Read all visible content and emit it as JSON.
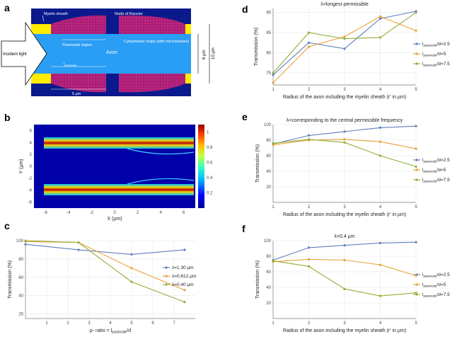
{
  "panel_labels": {
    "a": "a",
    "b": "b",
    "c": "c",
    "d": "d",
    "e": "e",
    "f": "f"
  },
  "colors": {
    "blue": "#5f7fbf",
    "orange": "#e8a23a",
    "green": "#8faf35",
    "axon": "#2a9df4",
    "myelin": "#b01f7a",
    "yellow": "#ffec00",
    "navy": "#0a1a8c"
  },
  "schematic": {
    "incident_light": "Incident light",
    "myelin_sheath": "Myelin sheath",
    "node_of_ranvier": "Node of Ranvier",
    "paranodal_region": "Paranodal region",
    "cytoplasmic_loops": "Cytoplasmic loops (with microtubules)",
    "axon": "Axon",
    "l_paranode": "l",
    "l_paranode_sub": "paranode",
    "scale": "5 µm",
    "dim_6": "6 µm",
    "dim_10": "10 µm"
  },
  "colorbar": {
    "ticks": [
      "1",
      "0.8",
      "0.6",
      "0.4",
      "0.2"
    ]
  },
  "chart_data": [
    {
      "id": "b",
      "type": "heatmap",
      "xlabel": "X (µm)",
      "ylabel": "Y (µm)",
      "xlim": [
        -7,
        7
      ],
      "ylim": [
        -7,
        7
      ],
      "xticks": [
        "-6",
        "-4",
        "-2",
        "0",
        "2",
        "4",
        "6"
      ],
      "yticks": [
        "6",
        "4",
        "2",
        "0",
        "-2",
        "-4",
        "-6"
      ],
      "clim": [
        0,
        1.1
      ]
    },
    {
      "id": "c",
      "type": "line",
      "title": "",
      "xlabel": "p- ratio = l",
      "xlabel_sub": "paranode",
      "xlabel_tail": "/d",
      "ylabel": "Transmission (%)",
      "xlim": [
        0,
        8
      ],
      "ylim": [
        15,
        100
      ],
      "xticks": [
        "1",
        "2",
        "3",
        "4",
        "5",
        "6",
        "7"
      ],
      "yticks": [
        "20",
        "40",
        "60",
        "80",
        "100"
      ],
      "x": [
        0,
        2.5,
        5,
        7.5
      ],
      "series": [
        {
          "name": "λ=1.30 µm",
          "values": [
            96,
            90,
            85,
            90
          ]
        },
        {
          "name": "λ=0.612 µm",
          "values": [
            99,
            98,
            70,
            46
          ]
        },
        {
          "name": "λ=0.40 µm",
          "values": [
            100,
            98,
            55,
            33
          ]
        }
      ]
    },
    {
      "id": "d",
      "type": "line",
      "title": "λ=longest permissible",
      "xlabel": "Radius of the axon including the myelin sheath (r' in µm)",
      "ylabel": "Transmission (%)",
      "xlim": [
        1,
        5
      ],
      "ylim": [
        72,
        91
      ],
      "xticks": [
        "1",
        "2",
        "3",
        "4",
        "5"
      ],
      "yticks": [
        "75",
        "80",
        "85",
        "90"
      ],
      "x": [
        1,
        2,
        3,
        4,
        5
      ],
      "series": [
        {
          "name": "l",
          "sub": "paranode",
          "tail": "/d=2.5",
          "values": [
            74.5,
            82.5,
            81,
            88.5,
            90.3
          ]
        },
        {
          "name": "l",
          "sub": "paranode",
          "tail": "/d=5",
          "values": [
            72.5,
            81.5,
            84,
            89,
            85.5
          ]
        },
        {
          "name": "l",
          "sub": "paranode",
          "tail": "/d=7.5",
          "values": [
            75,
            85,
            83.5,
            83.8,
            90
          ]
        }
      ]
    },
    {
      "id": "e",
      "type": "line",
      "title": "λ=corresponding to the central permissible frequency",
      "xlabel": "Radius of the axon including the myelin sheath (r' in µm)",
      "ylabel": "Transmission (%)",
      "xlim": [
        1,
        5
      ],
      "ylim": [
        0,
        100
      ],
      "xticks": [
        "1",
        "2",
        "3",
        "4",
        "5"
      ],
      "yticks": [
        "20",
        "40",
        "60",
        "80",
        "100"
      ],
      "x": [
        1,
        2,
        3,
        4,
        5
      ],
      "series": [
        {
          "name": "l",
          "sub": "paranode",
          "tail": "/d=2.5",
          "values": [
            75,
            86,
            91,
            96,
            98
          ]
        },
        {
          "name": "l",
          "sub": "paranode",
          "tail": "/d=5",
          "values": [
            74,
            80,
            81,
            78,
            69
          ]
        },
        {
          "name": "l",
          "sub": "paranode",
          "tail": "/d=7.5",
          "values": [
            76,
            81,
            77,
            60,
            46
          ]
        }
      ]
    },
    {
      "id": "f",
      "type": "line",
      "title": "λ=0.4 µm",
      "xlabel": "Radius of the axon including the myelin sheath (r' in µm)",
      "ylabel": "Transmission (%)",
      "xlim": [
        1,
        5
      ],
      "ylim": [
        0,
        100
      ],
      "xticks": [
        "1",
        "2",
        "3",
        "4",
        "5"
      ],
      "yticks": [
        "20",
        "40",
        "60",
        "80",
        "100"
      ],
      "x": [
        1,
        2,
        3,
        4,
        5
      ],
      "series": [
        {
          "name": "l",
          "sub": "paranode",
          "tail": "/d=2.5",
          "values": [
            75,
            91,
            94,
            97,
            98
          ]
        },
        {
          "name": "l",
          "sub": "paranode",
          "tail": "/d=5",
          "values": [
            73,
            76,
            75,
            69,
            55
          ]
        },
        {
          "name": "l",
          "sub": "paranode",
          "tail": "/d=7.5",
          "values": [
            74,
            67,
            38,
            29,
            33
          ]
        }
      ]
    }
  ]
}
